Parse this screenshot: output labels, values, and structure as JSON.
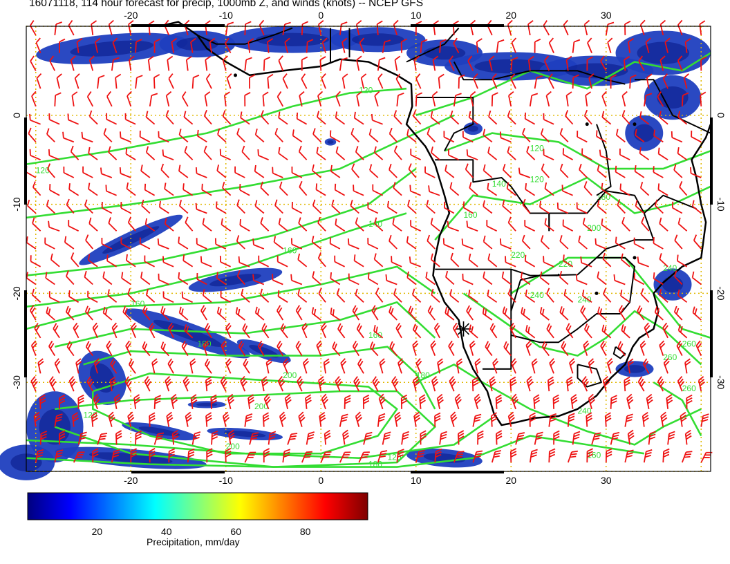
{
  "title": "16071118, 114 hour forecast for precip, 1000mb Z, and winds (knots) -- NCEP GFS",
  "map": {
    "lon_range": [
      -31,
      41
    ],
    "lat_range": [
      -40,
      10
    ],
    "lon_ticks": [
      -20,
      -10,
      0,
      10,
      20,
      30
    ],
    "lat_ticks": [
      0,
      -10,
      -20,
      -30
    ],
    "contour_labels": [
      "120",
      "120",
      "120",
      "140",
      "160",
      "160",
      "160",
      "180",
      "180",
      "200",
      "200",
      "220",
      "240",
      "240",
      "240",
      "260",
      "200",
      "180",
      "120",
      "140",
      "160",
      "180",
      "200",
      "220",
      "240",
      "260",
      "260",
      "160",
      "120",
      "120"
    ],
    "marker_lonlat": [
      15,
      -24
    ],
    "colors": {
      "contour": "#33dd33",
      "barb": "#ee1111",
      "grid": "#e0b800",
      "coast": "#000000",
      "precip": "#1f3fbf",
      "precip_dark": "#0a1a88"
    }
  },
  "colorbar": {
    "ticks": [
      "20",
      "40",
      "60",
      "80"
    ],
    "label": "Precipitation, mm/day",
    "colors": [
      "#00007f",
      "#0000ff",
      "#007fff",
      "#00ffff",
      "#7fff7f",
      "#ffff00",
      "#ff7f00",
      "#ff0000",
      "#7f0000"
    ]
  }
}
